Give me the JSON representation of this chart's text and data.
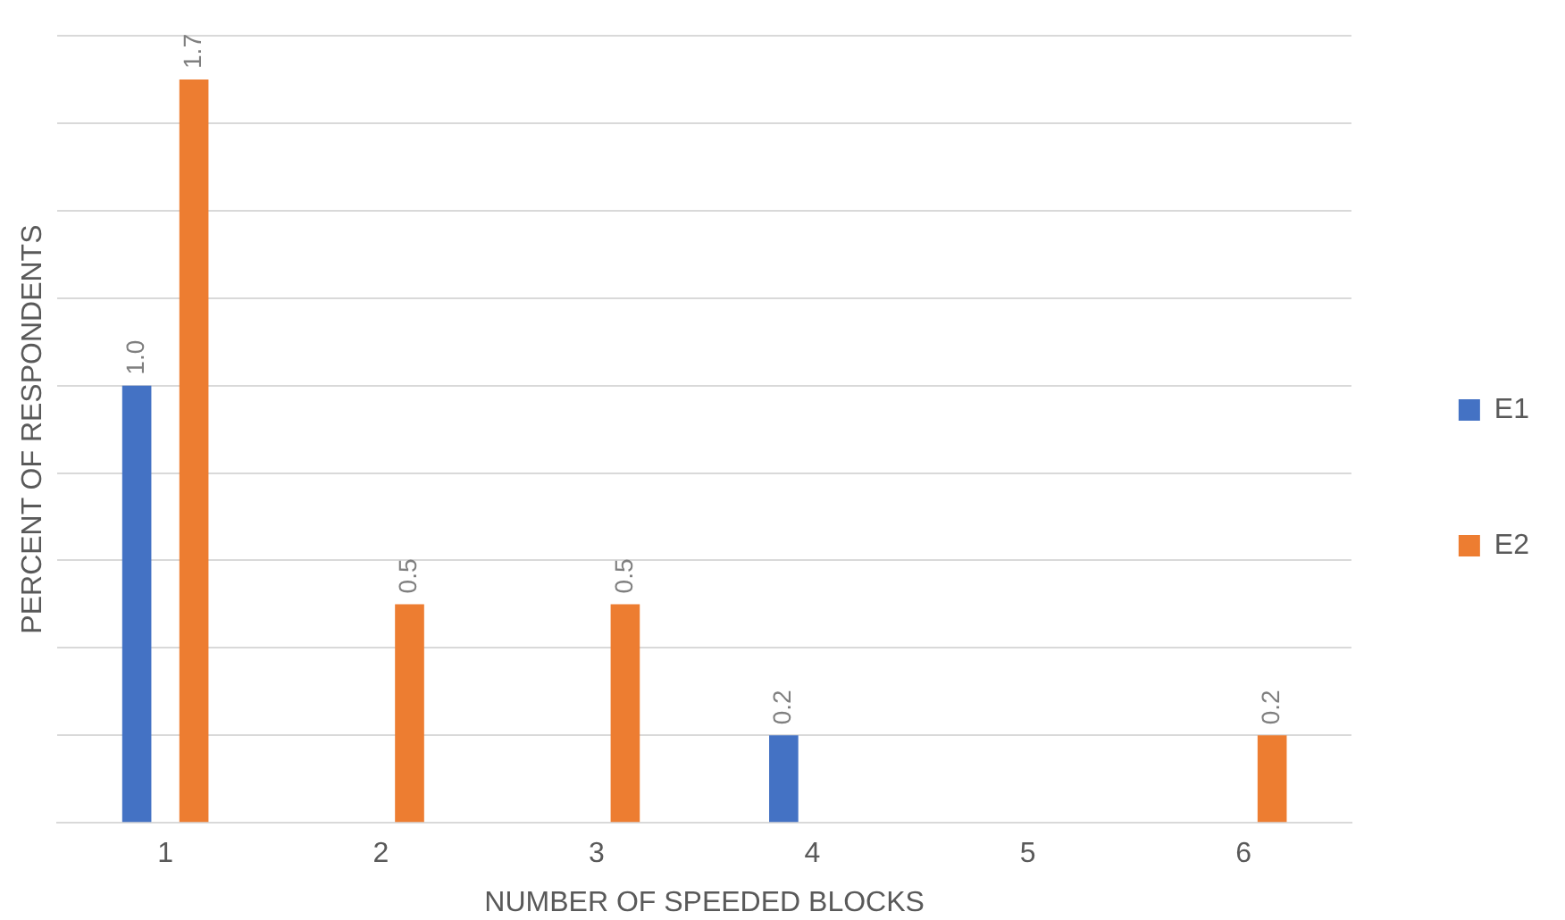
{
  "chart_data": {
    "type": "bar",
    "xlabel": "NUMBER OF SPEEDED BLOCKS",
    "ylabel": "PERCENT OF RESPONDENTS",
    "categories": [
      "1",
      "2",
      "3",
      "4",
      "5",
      "6"
    ],
    "series": [
      {
        "name": "E1",
        "color": "#4472c4",
        "values": [
          1.0,
          null,
          null,
          0.2,
          null,
          null
        ],
        "value_labels": [
          "1.0",
          null,
          null,
          "0.2",
          null,
          null
        ]
      },
      {
        "name": "E2",
        "color": "#ed7d31",
        "values": [
          1.7,
          0.5,
          0.5,
          null,
          null,
          0.2
        ],
        "value_labels": [
          "1.7",
          "0.5",
          "0.5",
          null,
          null,
          "0.2"
        ]
      }
    ],
    "ylim": [
      0,
      1.8
    ],
    "yticks": [
      {
        "value": 0,
        "label": null
      },
      {
        "value": 0.2,
        "label": null
      },
      {
        "value": 0.4,
        "label": null
      },
      {
        "value": 0.6,
        "label": null
      },
      {
        "value": 0.8,
        "label": null
      },
      {
        "value": 1.0,
        "label": null
      },
      {
        "value": 1.2,
        "label": null
      },
      {
        "value": 1.4,
        "label": null
      },
      {
        "value": 1.6,
        "label": null
      },
      {
        "value": 1.8,
        "label": null
      }
    ],
    "grid": "y",
    "legend": "right",
    "tick_labels": "x"
  }
}
